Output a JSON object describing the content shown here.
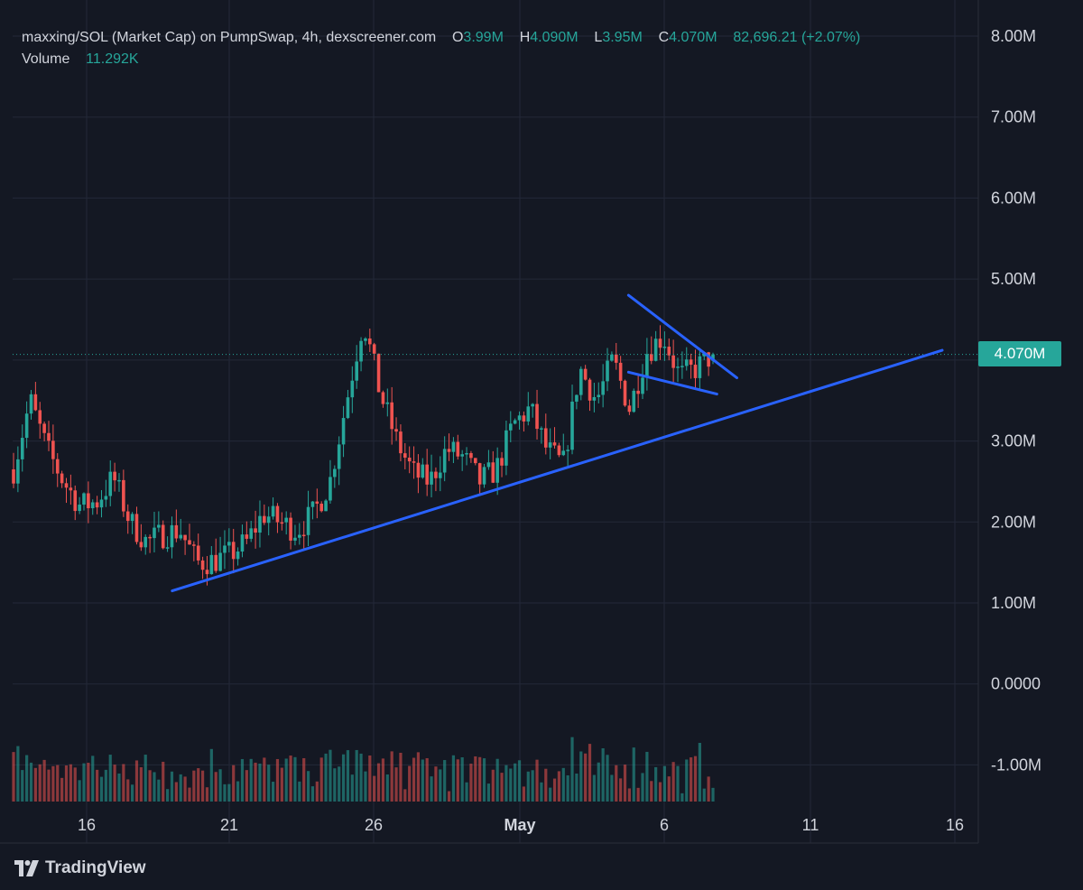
{
  "header": {
    "symbol": "maxxing/SOL (Market Cap) on PumpSwap, 4h, dexscreener.com",
    "o_label": "O",
    "o_value": "3.99M",
    "h_label": "H",
    "h_value": "4.090M",
    "l_label": "L",
    "l_value": "3.95M",
    "c_label": "C",
    "c_value": "4.070M",
    "change": "82,696.21 (+2.07%)",
    "volume_label": "Volume",
    "volume_value": "11.292K"
  },
  "branding": {
    "logo_text": "TradingView"
  },
  "colors": {
    "background": "#141823",
    "grid": "#232838",
    "up": "#26a69a",
    "down": "#ef5350",
    "trendline": "#2962ff",
    "text": "#d1d4dc"
  },
  "chart_data": {
    "type": "candlestick",
    "interval": "4h",
    "y_axis_labels": [
      "8.00M",
      "7.00M",
      "6.00M",
      "5.00M",
      "3.00M",
      "2.00M",
      "1.00M",
      "0.0000",
      "-1.00M"
    ],
    "y_range": [
      -1.25,
      8.3
    ],
    "x_axis_labels": [
      "16",
      "21",
      "26",
      "May",
      "6",
      "11",
      "16"
    ],
    "x_range": [
      "Apr 13",
      "May 17"
    ],
    "last_price": "4.070M",
    "last_price_value": 4.07,
    "grid": true,
    "trendlines": [
      {
        "name": "support",
        "from": [
          "Apr 19",
          1.15
        ],
        "to": [
          "May 16",
          4.12
        ]
      },
      {
        "name": "wedge-upper",
        "from": [
          "May 5",
          4.8
        ],
        "to": [
          "May 8.8",
          3.78
        ]
      },
      {
        "name": "wedge-lower",
        "from": [
          "May 5",
          3.85
        ],
        "to": [
          "May 8.1",
          3.58
        ]
      }
    ],
    "anchors": [
      [
        0,
        2.65
      ],
      [
        1,
        3.5
      ],
      [
        2,
        2.9
      ],
      [
        3,
        2.5
      ],
      [
        4,
        2.2
      ],
      [
        5,
        2.25
      ],
      [
        6,
        2.55
      ],
      [
        7,
        2.0
      ],
      [
        8,
        1.75
      ],
      [
        9,
        1.85
      ],
      [
        10,
        1.9
      ],
      [
        11,
        1.5
      ],
      [
        12,
        1.52
      ],
      [
        13,
        1.6
      ],
      [
        14,
        1.75
      ],
      [
        15,
        2.1
      ],
      [
        16,
        2.0
      ],
      [
        17,
        1.9
      ],
      [
        18,
        2.1
      ],
      [
        19,
        2.5
      ],
      [
        20,
        3.5
      ],
      [
        21,
        4.5
      ],
      [
        22,
        3.6
      ],
      [
        23,
        3.0
      ],
      [
        24,
        2.6
      ],
      [
        25,
        2.5
      ],
      [
        26,
        2.9
      ],
      [
        27,
        2.8
      ],
      [
        28,
        2.5
      ],
      [
        29,
        2.65
      ],
      [
        30,
        3.2
      ],
      [
        31,
        3.4
      ],
      [
        32,
        2.9
      ],
      [
        33,
        2.7
      ],
      [
        34,
        3.9
      ],
      [
        35,
        3.5
      ],
      [
        36,
        4.0
      ],
      [
        37,
        3.4
      ],
      [
        38,
        4.1
      ],
      [
        39,
        4.3
      ],
      [
        40,
        3.8
      ],
      [
        41,
        3.9
      ],
      [
        42,
        4.07
      ]
    ],
    "volume_scale_note": "volume bars shown in lower pane"
  }
}
